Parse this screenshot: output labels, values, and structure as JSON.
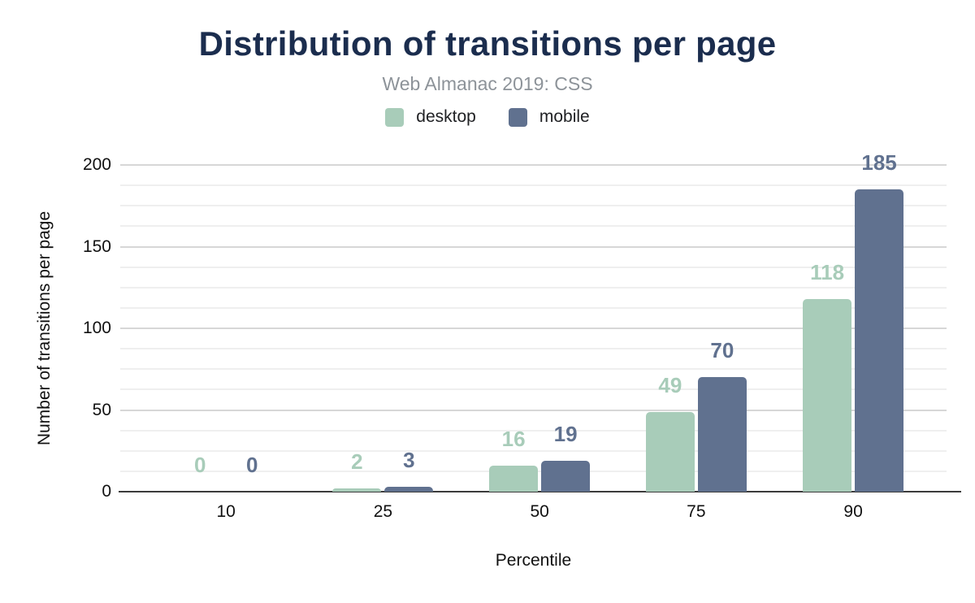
{
  "chart_data": {
    "type": "bar",
    "title": "Distribution of transitions per page",
    "subtitle": "Web Almanac 2019: CSS",
    "categories": [
      "10",
      "25",
      "50",
      "75",
      "90"
    ],
    "series": [
      {
        "name": "desktop",
        "color": "#a8ccb9",
        "values": [
          0,
          2,
          16,
          49,
          118
        ]
      },
      {
        "name": "mobile",
        "color": "#60718f",
        "values": [
          0,
          3,
          19,
          70,
          185
        ]
      }
    ],
    "xlabel": "Percentile",
    "ylabel": "Number of transitions per page",
    "ylim": [
      0,
      200
    ],
    "y_major_ticks": [
      0,
      50,
      100,
      150,
      200
    ],
    "y_minor_step": 12.5,
    "grid": true,
    "legend_position": "top",
    "value_labels": true,
    "group_center_percents": [
      12.8,
      31.8,
      50.75,
      69.7,
      88.7
    ]
  },
  "colors": {
    "title": "#1b2d4e",
    "subtitle": "#8d9399",
    "axis_line": "#3b3b3b",
    "major_grid": "#d7d7d7",
    "minor_grid": "#efefef",
    "tick_text": "#111111"
  }
}
